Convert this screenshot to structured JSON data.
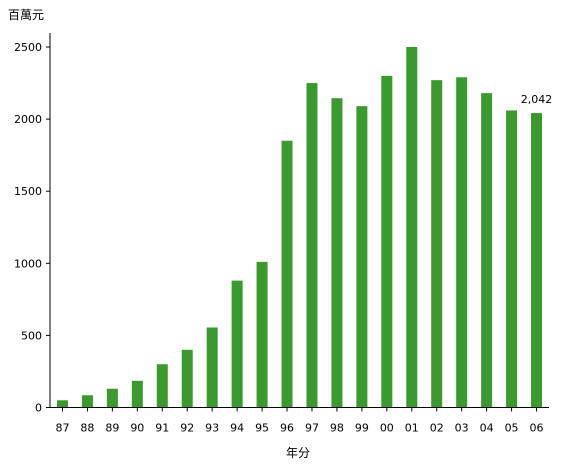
{
  "chart_data": {
    "type": "bar",
    "ylabel": "百萬元",
    "xlabel": "年分",
    "categories": [
      "87",
      "88",
      "89",
      "90",
      "91",
      "92",
      "93",
      "94",
      "95",
      "96",
      "97",
      "98",
      "99",
      "00",
      "01",
      "02",
      "03",
      "04",
      "05",
      "06"
    ],
    "values": [
      50,
      85,
      130,
      185,
      300,
      400,
      555,
      880,
      1010,
      1850,
      2250,
      2145,
      2090,
      2300,
      2500,
      2270,
      2290,
      2180,
      2060,
      2042
    ],
    "ylim": [
      0,
      2500
    ],
    "yticks": [
      0,
      500,
      1000,
      1500,
      2000,
      2500
    ],
    "grid": false,
    "bar_color": "#3a9a2e",
    "data_labels": [
      {
        "index": 19,
        "text": "2,042"
      }
    ]
  }
}
